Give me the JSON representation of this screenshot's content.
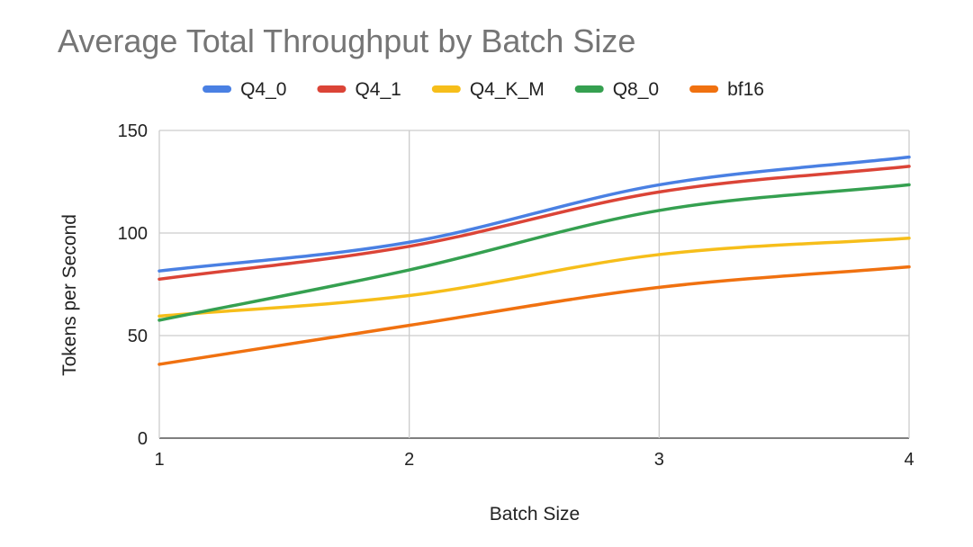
{
  "chart_data": {
    "type": "line",
    "title": "Average Total Throughput by Batch Size",
    "xlabel": "Batch Size",
    "ylabel": "Tokens per Second",
    "x": [
      1,
      2,
      3,
      4
    ],
    "xlim": [
      1,
      4
    ],
    "ylim": [
      0,
      150
    ],
    "yticks": [
      0,
      50,
      100,
      150
    ],
    "xticks": [
      1,
      2,
      3,
      4
    ],
    "grid": true,
    "smooth": true,
    "legend_position": "top",
    "series": [
      {
        "name": "Q4_0",
        "color": "#4a80e3",
        "values": [
          81.5,
          95.5,
          123.5,
          137
        ]
      },
      {
        "name": "Q4_1",
        "color": "#db4437",
        "values": [
          77.5,
          93.5,
          120,
          132.5
        ]
      },
      {
        "name": "Q4_K_M",
        "color": "#f6be1a",
        "values": [
          59.5,
          69.5,
          89.5,
          97.5
        ]
      },
      {
        "name": "Q8_0",
        "color": "#35a050",
        "values": [
          57.5,
          82,
          111,
          123.5
        ]
      },
      {
        "name": "bf16",
        "color": "#f07110",
        "values": [
          36,
          55,
          73.5,
          83.5
        ]
      }
    ]
  }
}
